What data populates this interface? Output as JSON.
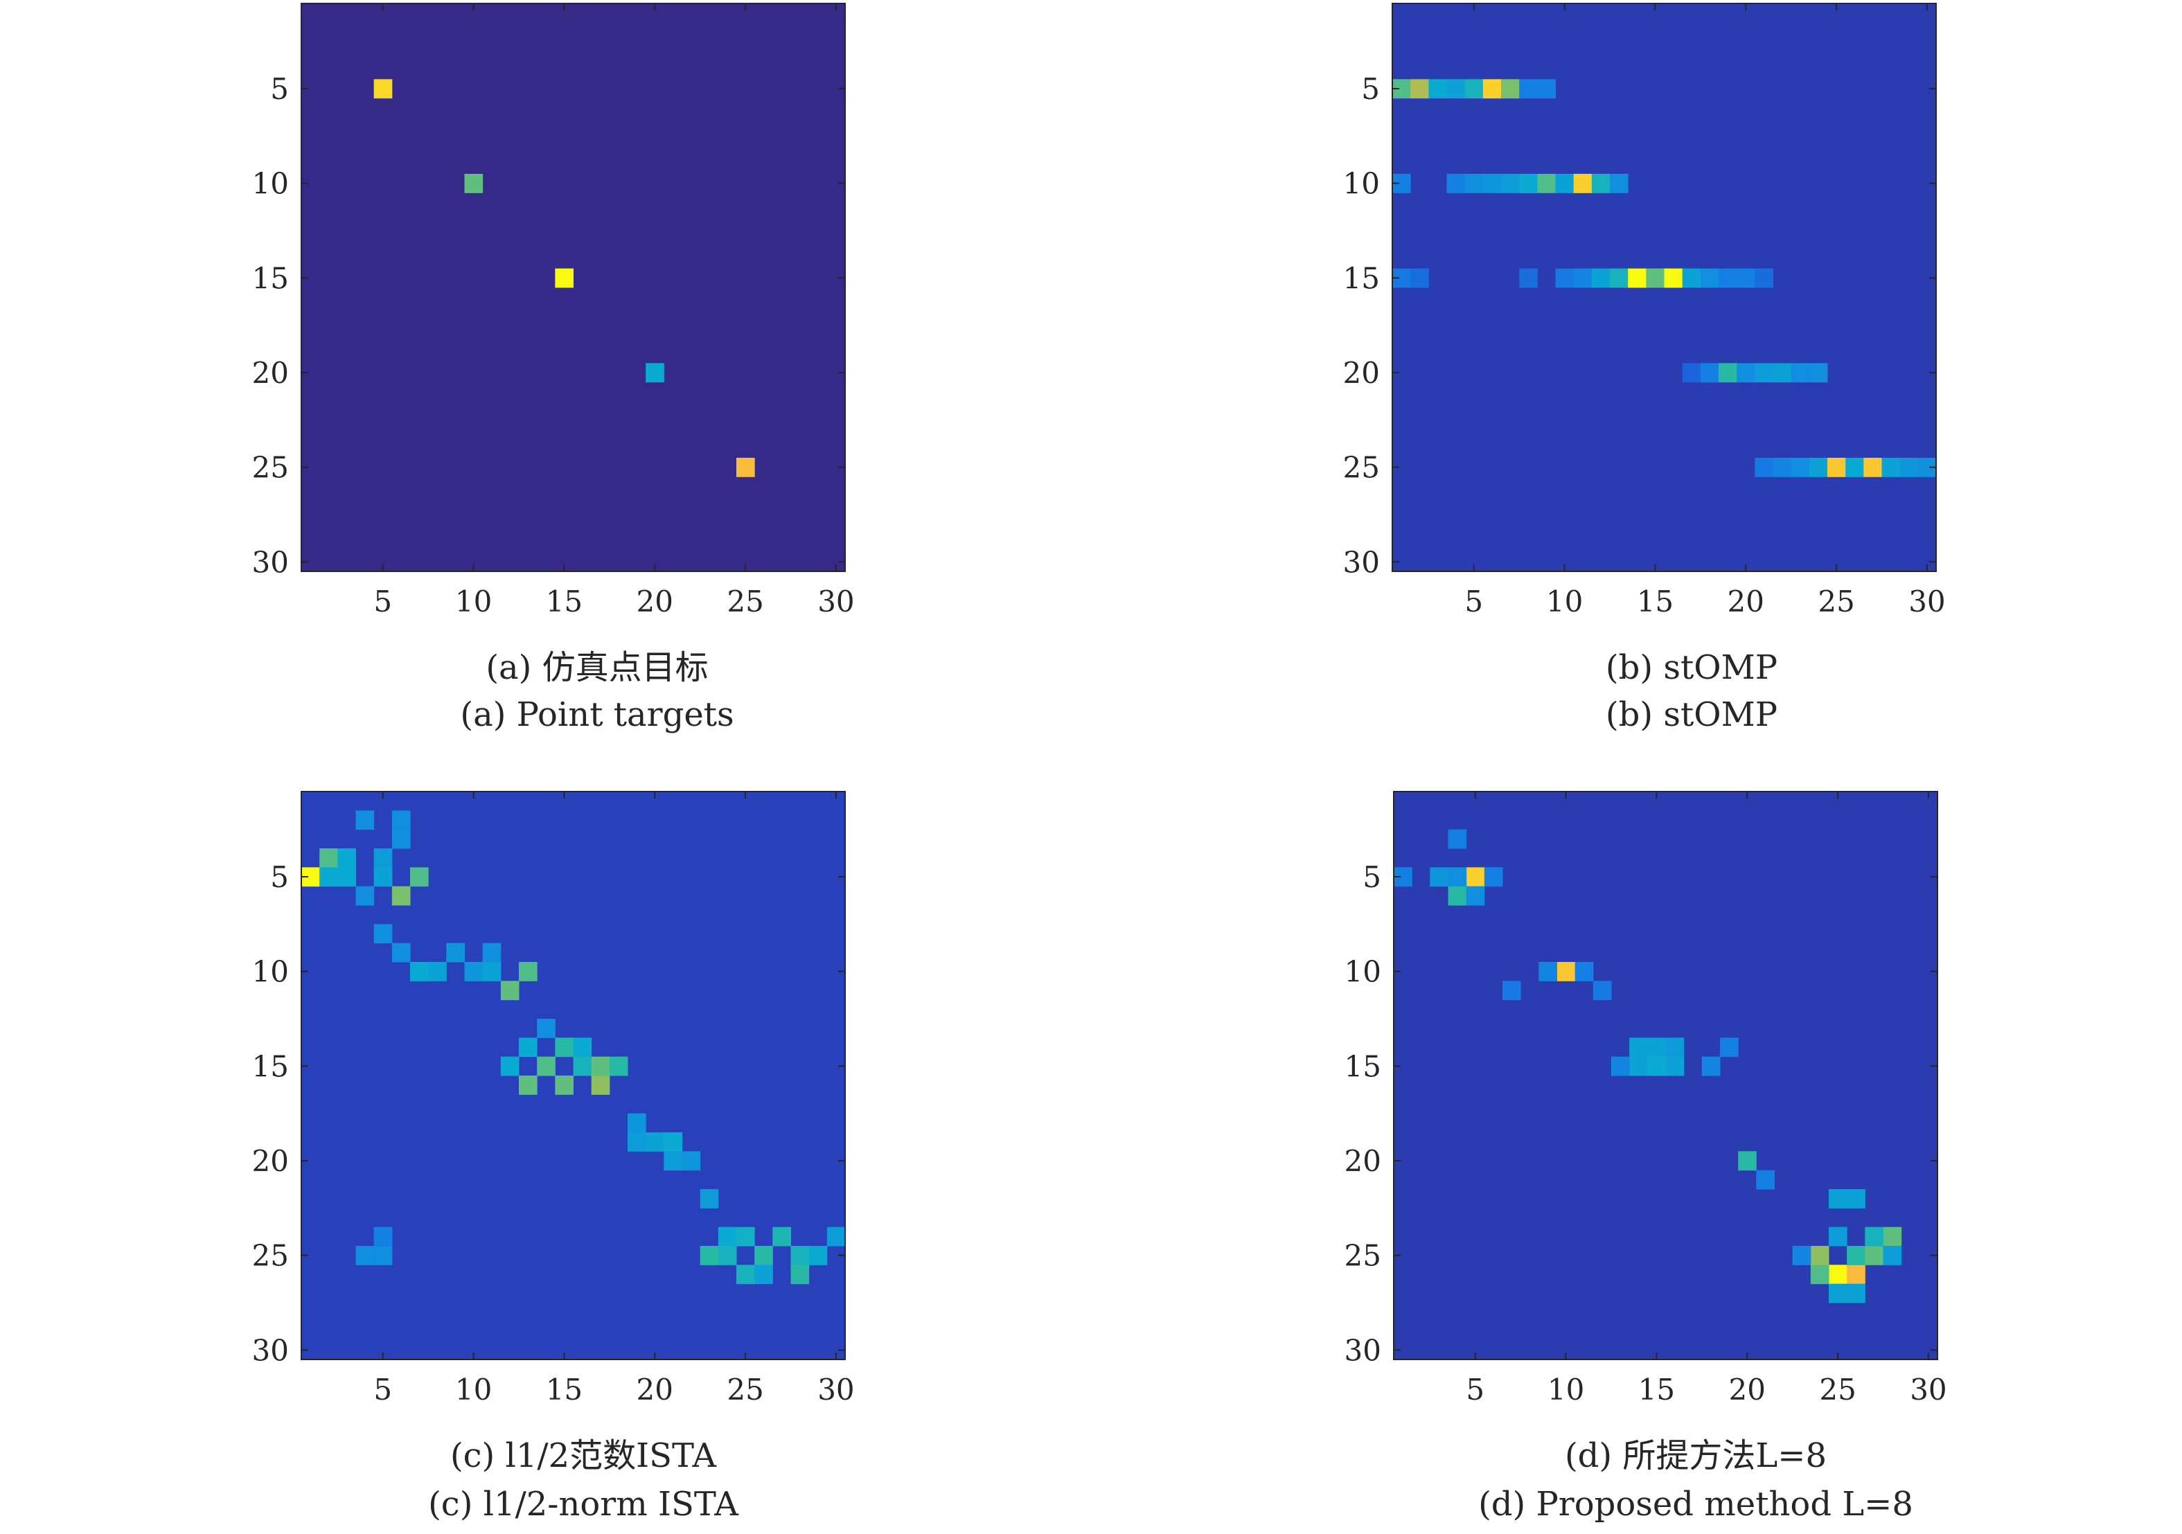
{
  "chart_data": [
    {
      "type": "heatmap",
      "caption_cn": "(a) 仿真点目标",
      "caption_en": "(a) Point targets",
      "x_ticks": [
        5,
        10,
        15,
        20,
        25,
        30
      ],
      "y_ticks": [
        5,
        10,
        15,
        20,
        25,
        30
      ],
      "xlim": [
        0.5,
        30.5
      ],
      "ylim": [
        0.5,
        30.5
      ],
      "grid_size": 30,
      "background": 0.0,
      "points": [
        {
          "x": 5,
          "y": 5,
          "v": 0.92
        },
        {
          "x": 10,
          "y": 10,
          "v": 0.62
        },
        {
          "x": 15,
          "y": 15,
          "v": 1.0
        },
        {
          "x": 20,
          "y": 20,
          "v": 0.45
        },
        {
          "x": 25,
          "y": 25,
          "v": 0.85
        }
      ]
    },
    {
      "type": "heatmap",
      "caption_cn": "(b) stOMP",
      "caption_en": "(b) stOMP",
      "x_ticks": [
        5,
        10,
        15,
        20,
        25,
        30
      ],
      "y_ticks": [
        5,
        10,
        15,
        20,
        25,
        30
      ],
      "xlim": [
        0.5,
        30.5
      ],
      "ylim": [
        0.5,
        30.5
      ],
      "grid_size": 30,
      "background": 0.08,
      "points": [
        {
          "x": 1,
          "y": 5,
          "v": 0.6
        },
        {
          "x": 2,
          "y": 5,
          "v": 0.72
        },
        {
          "x": 3,
          "y": 5,
          "v": 0.45
        },
        {
          "x": 4,
          "y": 5,
          "v": 0.42
        },
        {
          "x": 5,
          "y": 5,
          "v": 0.5
        },
        {
          "x": 6,
          "y": 5,
          "v": 0.9
        },
        {
          "x": 7,
          "y": 5,
          "v": 0.65
        },
        {
          "x": 8,
          "y": 5,
          "v": 0.3
        },
        {
          "x": 9,
          "y": 5,
          "v": 0.3
        },
        {
          "x": 1,
          "y": 10,
          "v": 0.3
        },
        {
          "x": 4,
          "y": 10,
          "v": 0.3
        },
        {
          "x": 5,
          "y": 10,
          "v": 0.35
        },
        {
          "x": 6,
          "y": 10,
          "v": 0.38
        },
        {
          "x": 7,
          "y": 10,
          "v": 0.4
        },
        {
          "x": 8,
          "y": 10,
          "v": 0.45
        },
        {
          "x": 9,
          "y": 10,
          "v": 0.6
        },
        {
          "x": 10,
          "y": 10,
          "v": 0.42
        },
        {
          "x": 11,
          "y": 10,
          "v": 0.9
        },
        {
          "x": 12,
          "y": 10,
          "v": 0.5
        },
        {
          "x": 13,
          "y": 10,
          "v": 0.35
        },
        {
          "x": 1,
          "y": 15,
          "v": 0.28
        },
        {
          "x": 2,
          "y": 15,
          "v": 0.25
        },
        {
          "x": 8,
          "y": 15,
          "v": 0.25
        },
        {
          "x": 10,
          "y": 15,
          "v": 0.28
        },
        {
          "x": 11,
          "y": 15,
          "v": 0.32
        },
        {
          "x": 12,
          "y": 15,
          "v": 0.42
        },
        {
          "x": 13,
          "y": 15,
          "v": 0.5
        },
        {
          "x": 14,
          "y": 15,
          "v": 1.0
        },
        {
          "x": 15,
          "y": 15,
          "v": 0.62
        },
        {
          "x": 16,
          "y": 15,
          "v": 1.0
        },
        {
          "x": 17,
          "y": 15,
          "v": 0.42
        },
        {
          "x": 18,
          "y": 15,
          "v": 0.35
        },
        {
          "x": 19,
          "y": 15,
          "v": 0.3
        },
        {
          "x": 20,
          "y": 15,
          "v": 0.3
        },
        {
          "x": 21,
          "y": 15,
          "v": 0.25
        },
        {
          "x": 17,
          "y": 20,
          "v": 0.22
        },
        {
          "x": 18,
          "y": 20,
          "v": 0.3
        },
        {
          "x": 19,
          "y": 20,
          "v": 0.55
        },
        {
          "x": 20,
          "y": 20,
          "v": 0.35
        },
        {
          "x": 21,
          "y": 20,
          "v": 0.4
        },
        {
          "x": 22,
          "y": 20,
          "v": 0.42
        },
        {
          "x": 23,
          "y": 20,
          "v": 0.35
        },
        {
          "x": 24,
          "y": 20,
          "v": 0.35
        },
        {
          "x": 21,
          "y": 25,
          "v": 0.28
        },
        {
          "x": 22,
          "y": 25,
          "v": 0.32
        },
        {
          "x": 23,
          "y": 25,
          "v": 0.35
        },
        {
          "x": 24,
          "y": 25,
          "v": 0.42
        },
        {
          "x": 25,
          "y": 25,
          "v": 0.88
        },
        {
          "x": 26,
          "y": 25,
          "v": 0.45
        },
        {
          "x": 27,
          "y": 25,
          "v": 0.88
        },
        {
          "x": 28,
          "y": 25,
          "v": 0.42
        },
        {
          "x": 29,
          "y": 25,
          "v": 0.38
        },
        {
          "x": 30,
          "y": 25,
          "v": 0.35
        }
      ]
    },
    {
      "type": "heatmap",
      "caption_cn": "(c) l1/2范数ISTA",
      "caption_en": "(c) l1/2-norm ISTA",
      "x_ticks": [
        5,
        10,
        15,
        20,
        25,
        30
      ],
      "y_ticks": [
        5,
        10,
        15,
        20,
        25,
        30
      ],
      "xlim": [
        0.5,
        30.5
      ],
      "ylim": [
        0.5,
        30.5
      ],
      "grid_size": 30,
      "background": 0.1,
      "points": [
        {
          "x": 1,
          "y": 5,
          "v": 1.0
        },
        {
          "x": 2,
          "y": 4,
          "v": 0.6
        },
        {
          "x": 3,
          "y": 4,
          "v": 0.45
        },
        {
          "x": 2,
          "y": 5,
          "v": 0.45
        },
        {
          "x": 3,
          "y": 5,
          "v": 0.45
        },
        {
          "x": 5,
          "y": 5,
          "v": 0.42
        },
        {
          "x": 6,
          "y": 6,
          "v": 0.65
        },
        {
          "x": 7,
          "y": 5,
          "v": 0.6
        },
        {
          "x": 5,
          "y": 4,
          "v": 0.4
        },
        {
          "x": 4,
          "y": 6,
          "v": 0.35
        },
        {
          "x": 5,
          "y": 8,
          "v": 0.35
        },
        {
          "x": 6,
          "y": 3,
          "v": 0.35
        },
        {
          "x": 6,
          "y": 9,
          "v": 0.35
        },
        {
          "x": 7,
          "y": 10,
          "v": 0.45
        },
        {
          "x": 8,
          "y": 10,
          "v": 0.42
        },
        {
          "x": 9,
          "y": 9,
          "v": 0.38
        },
        {
          "x": 10,
          "y": 10,
          "v": 0.38
        },
        {
          "x": 11,
          "y": 10,
          "v": 0.42
        },
        {
          "x": 12,
          "y": 11,
          "v": 0.62
        },
        {
          "x": 13,
          "y": 10,
          "v": 0.6
        },
        {
          "x": 11,
          "y": 9,
          "v": 0.35
        },
        {
          "x": 14,
          "y": 13,
          "v": 0.35
        },
        {
          "x": 13,
          "y": 14,
          "v": 0.45
        },
        {
          "x": 12,
          "y": 15,
          "v": 0.45
        },
        {
          "x": 13,
          "y": 16,
          "v": 0.62
        },
        {
          "x": 14,
          "y": 15,
          "v": 0.6
        },
        {
          "x": 15,
          "y": 14,
          "v": 0.55
        },
        {
          "x": 15,
          "y": 16,
          "v": 0.62
        },
        {
          "x": 16,
          "y": 15,
          "v": 0.5
        },
        {
          "x": 17,
          "y": 16,
          "v": 0.68
        },
        {
          "x": 17,
          "y": 15,
          "v": 0.62
        },
        {
          "x": 18,
          "y": 15,
          "v": 0.55
        },
        {
          "x": 16,
          "y": 14,
          "v": 0.45
        },
        {
          "x": 19,
          "y": 18,
          "v": 0.38
        },
        {
          "x": 19,
          "y": 19,
          "v": 0.4
        },
        {
          "x": 20,
          "y": 19,
          "v": 0.42
        },
        {
          "x": 21,
          "y": 19,
          "v": 0.45
        },
        {
          "x": 21,
          "y": 20,
          "v": 0.4
        },
        {
          "x": 22,
          "y": 20,
          "v": 0.38
        },
        {
          "x": 23,
          "y": 22,
          "v": 0.4
        },
        {
          "x": 24,
          "y": 24,
          "v": 0.45
        },
        {
          "x": 23,
          "y": 25,
          "v": 0.55
        },
        {
          "x": 24,
          "y": 25,
          "v": 0.5
        },
        {
          "x": 25,
          "y": 24,
          "v": 0.48
        },
        {
          "x": 26,
          "y": 25,
          "v": 0.55
        },
        {
          "x": 27,
          "y": 24,
          "v": 0.52
        },
        {
          "x": 28,
          "y": 25,
          "v": 0.5
        },
        {
          "x": 28,
          "y": 26,
          "v": 0.55
        },
        {
          "x": 29,
          "y": 25,
          "v": 0.45
        },
        {
          "x": 30,
          "y": 24,
          "v": 0.4
        },
        {
          "x": 25,
          "y": 26,
          "v": 0.5
        },
        {
          "x": 26,
          "y": 26,
          "v": 0.42
        },
        {
          "x": 4,
          "y": 25,
          "v": 0.35
        },
        {
          "x": 5,
          "y": 25,
          "v": 0.35
        },
        {
          "x": 5,
          "y": 24,
          "v": 0.3
        },
        {
          "x": 4,
          "y": 2,
          "v": 0.35
        },
        {
          "x": 6,
          "y": 2,
          "v": 0.35
        }
      ]
    },
    {
      "type": "heatmap",
      "caption_cn": "(d) 所提方法L=8",
      "caption_en": "(d) Proposed method L=8",
      "x_ticks": [
        5,
        10,
        15,
        20,
        25,
        30
      ],
      "y_ticks": [
        5,
        10,
        15,
        20,
        25,
        30
      ],
      "xlim": [
        0.5,
        30.5
      ],
      "ylim": [
        0.5,
        30.5
      ],
      "grid_size": 30,
      "background": 0.08,
      "points": [
        {
          "x": 5,
          "y": 5,
          "v": 0.9
        },
        {
          "x": 4,
          "y": 6,
          "v": 0.55
        },
        {
          "x": 3,
          "y": 5,
          "v": 0.38
        },
        {
          "x": 4,
          "y": 5,
          "v": 0.35
        },
        {
          "x": 1,
          "y": 5,
          "v": 0.3
        },
        {
          "x": 4,
          "y": 3,
          "v": 0.3
        },
        {
          "x": 5,
          "y": 6,
          "v": 0.35
        },
        {
          "x": 6,
          "y": 5,
          "v": 0.3
        },
        {
          "x": 10,
          "y": 10,
          "v": 0.88
        },
        {
          "x": 9,
          "y": 10,
          "v": 0.32
        },
        {
          "x": 11,
          "y": 10,
          "v": 0.3
        },
        {
          "x": 7,
          "y": 11,
          "v": 0.28
        },
        {
          "x": 12,
          "y": 11,
          "v": 0.28
        },
        {
          "x": 14,
          "y": 14,
          "v": 0.42
        },
        {
          "x": 15,
          "y": 14,
          "v": 0.42
        },
        {
          "x": 16,
          "y": 14,
          "v": 0.4
        },
        {
          "x": 14,
          "y": 15,
          "v": 0.42
        },
        {
          "x": 15,
          "y": 15,
          "v": 0.45
        },
        {
          "x": 16,
          "y": 15,
          "v": 0.42
        },
        {
          "x": 13,
          "y": 15,
          "v": 0.32
        },
        {
          "x": 18,
          "y": 15,
          "v": 0.32
        },
        {
          "x": 19,
          "y": 14,
          "v": 0.3
        },
        {
          "x": 20,
          "y": 20,
          "v": 0.55
        },
        {
          "x": 21,
          "y": 21,
          "v": 0.3
        },
        {
          "x": 25,
          "y": 26,
          "v": 1.0
        },
        {
          "x": 26,
          "y": 26,
          "v": 0.85
        },
        {
          "x": 24,
          "y": 26,
          "v": 0.6
        },
        {
          "x": 24,
          "y": 25,
          "v": 0.68
        },
        {
          "x": 26,
          "y": 25,
          "v": 0.55
        },
        {
          "x": 27,
          "y": 25,
          "v": 0.62
        },
        {
          "x": 28,
          "y": 24,
          "v": 0.62
        },
        {
          "x": 27,
          "y": 24,
          "v": 0.5
        },
        {
          "x": 25,
          "y": 24,
          "v": 0.4
        },
        {
          "x": 25,
          "y": 22,
          "v": 0.42
        },
        {
          "x": 26,
          "y": 22,
          "v": 0.42
        },
        {
          "x": 25,
          "y": 27,
          "v": 0.42
        },
        {
          "x": 26,
          "y": 27,
          "v": 0.42
        },
        {
          "x": 28,
          "y": 25,
          "v": 0.4
        },
        {
          "x": 23,
          "y": 25,
          "v": 0.32
        }
      ]
    }
  ]
}
